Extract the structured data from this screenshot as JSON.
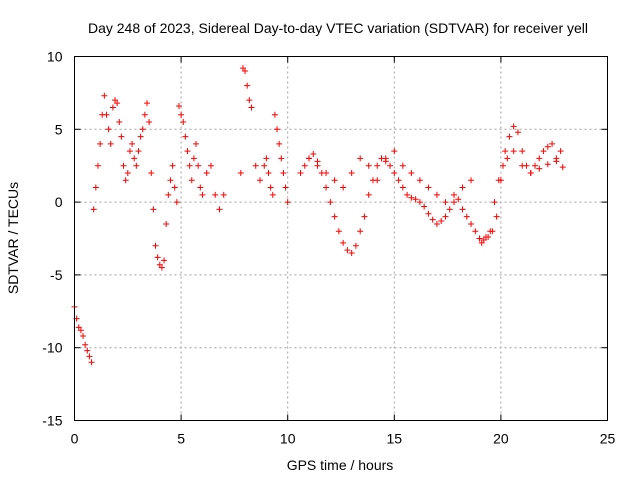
{
  "chart_data": {
    "type": "scatter",
    "title": "Day 248 of 2023, Sidereal Day-to-day VTEC variation (SDTVAR) for receiver yell",
    "xlabel": "GPS time / hours",
    "ylabel": "SDTVAR / TECUs",
    "xlim": [
      0,
      25
    ],
    "ylim": [
      -15,
      10
    ],
    "xticks": [
      0,
      5,
      10,
      15,
      20,
      25
    ],
    "yticks": [
      -15,
      -10,
      -5,
      0,
      5,
      10
    ],
    "grid": true,
    "marker": "+",
    "color": "#ff0000",
    "series": [
      {
        "name": "SDTVAR",
        "x": [
          0.0,
          0.1,
          0.2,
          0.3,
          0.4,
          0.5,
          0.6,
          0.7,
          0.8,
          0.9,
          1.0,
          1.1,
          1.2,
          1.3,
          1.4,
          1.5,
          1.6,
          1.7,
          1.8,
          1.9,
          2.0,
          2.1,
          2.2,
          2.3,
          2.4,
          2.5,
          2.6,
          2.7,
          2.8,
          2.9,
          3.0,
          3.1,
          3.2,
          3.3,
          3.4,
          3.5,
          3.6,
          3.7,
          3.8,
          3.9,
          4.0,
          4.1,
          4.2,
          4.3,
          4.4,
          4.5,
          4.6,
          4.7,
          4.8,
          4.9,
          5.0,
          5.1,
          5.2,
          5.3,
          5.4,
          5.5,
          5.6,
          5.7,
          5.8,
          5.9,
          6.0,
          6.2,
          6.4,
          6.6,
          6.8,
          7.0,
          7.8,
          7.9,
          8.0,
          8.1,
          8.2,
          8.3,
          8.5,
          8.7,
          8.9,
          9.0,
          9.1,
          9.2,
          9.3,
          9.4,
          9.5,
          9.6,
          9.7,
          9.8,
          9.9,
          10.0,
          10.6,
          10.8,
          11.0,
          11.2,
          11.4,
          11.6,
          11.8,
          12.0,
          12.2,
          12.4,
          12.6,
          12.8,
          13.0,
          13.2,
          13.4,
          13.6,
          13.8,
          14.0,
          14.2,
          14.4,
          14.6,
          14.8,
          15.0,
          15.2,
          15.4,
          15.6,
          15.8,
          16.0,
          16.2,
          16.4,
          16.6,
          16.8,
          17.0,
          17.2,
          17.4,
          17.6,
          17.8,
          18.0,
          18.2,
          18.4,
          18.6,
          18.8,
          19.0,
          19.2,
          19.4,
          19.6,
          19.8,
          20.0,
          20.2,
          20.4,
          20.6,
          20.8,
          21.0,
          21.2,
          21.4,
          21.6,
          21.8,
          22.0,
          22.2,
          22.4,
          22.6,
          22.8,
          11.0,
          11.4,
          11.8,
          12.2,
          12.6,
          13.0,
          13.4,
          13.8,
          14.2,
          14.6,
          15.0,
          15.4,
          15.8,
          16.2,
          16.6,
          17.0,
          17.4,
          17.8,
          18.2,
          18.6,
          19.0,
          19.1,
          19.3,
          19.5,
          19.7,
          19.9,
          20.1,
          20.3,
          20.6,
          21.0,
          21.4,
          21.8,
          22.2,
          22.6,
          22.9
        ],
        "values": [
          -7.2,
          -8.0,
          -8.6,
          -8.8,
          -9.2,
          -9.8,
          -10.2,
          -10.6,
          -11.0,
          -0.5,
          1.0,
          2.5,
          4.0,
          6.0,
          7.3,
          6.0,
          5.0,
          4.0,
          6.5,
          7.0,
          6.8,
          5.5,
          4.5,
          2.5,
          1.5,
          2.0,
          3.5,
          4.0,
          3.0,
          2.5,
          3.5,
          4.5,
          5.0,
          6.0,
          6.8,
          5.5,
          2.0,
          -0.5,
          -3.0,
          -3.8,
          -4.3,
          -4.5,
          -4.0,
          -1.5,
          0.5,
          1.5,
          2.5,
          1.0,
          0.0,
          6.6,
          6.0,
          5.5,
          4.5,
          3.5,
          2.5,
          1.5,
          3.0,
          4.0,
          2.5,
          1.0,
          0.5,
          2.0,
          2.5,
          0.5,
          -0.5,
          0.5,
          2.0,
          9.2,
          9.0,
          8.0,
          7.0,
          6.5,
          2.5,
          1.5,
          2.5,
          3.0,
          2.0,
          1.0,
          0.5,
          6.0,
          5.0,
          4.0,
          3.0,
          2.0,
          1.0,
          0.0,
          2.0,
          2.5,
          3.0,
          3.3,
          2.8,
          2.0,
          1.0,
          0.0,
          -1.0,
          -2.0,
          -2.8,
          -3.3,
          -3.5,
          -3.0,
          -2.0,
          -1.0,
          0.5,
          1.5,
          2.5,
          3.0,
          2.8,
          2.5,
          2.0,
          1.5,
          1.0,
          0.5,
          0.3,
          0.2,
          0.0,
          -0.3,
          -0.8,
          -1.2,
          -1.5,
          -1.3,
          -1.0,
          -0.5,
          0.0,
          0.2,
          -0.5,
          -1.0,
          -1.5,
          -2.0,
          -2.5,
          -2.6,
          -2.4,
          -2.0,
          -1.0,
          1.5,
          3.5,
          4.5,
          5.2,
          4.8,
          3.5,
          2.5,
          2.0,
          2.5,
          3.0,
          3.5,
          3.8,
          4.0,
          3.0,
          3.5,
          3.0,
          2.5,
          2.0,
          1.5,
          1.0,
          2.0,
          3.0,
          2.5,
          1.5,
          3.0,
          3.5,
          2.5,
          2.0,
          1.5,
          1.0,
          0.5,
          0.0,
          0.5,
          1.0,
          1.5,
          -2.5,
          -2.8,
          -2.4,
          -2.0,
          0.0,
          1.5,
          2.5,
          3.0,
          3.5,
          2.5,
          2.0,
          2.3,
          2.6,
          2.8,
          2.4
        ]
      }
    ]
  }
}
